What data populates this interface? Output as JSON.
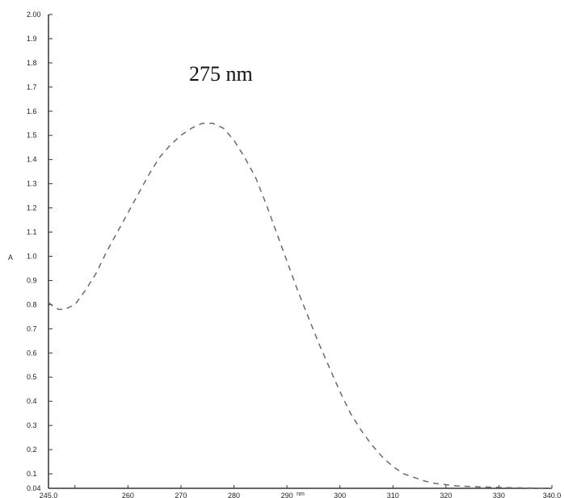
{
  "chart_data": {
    "type": "line",
    "title": "",
    "xlabel": "nm",
    "ylabel": "A",
    "xlim": [
      245.0,
      340.0
    ],
    "ylim": [
      0.04,
      2.0
    ],
    "x_tick_labels": [
      "245.0",
      "260",
      "270",
      "280",
      "290",
      "300",
      "310",
      "320",
      "330",
      "340.0"
    ],
    "y_tick_labels": [
      "0.04",
      "0.1",
      "0.2",
      "0.3",
      "0.4",
      "0.5",
      "0.6",
      "0.7",
      "0.8",
      "0.9",
      "1.0",
      "1.1",
      "1.2",
      "1.3",
      "1.4",
      "1.5",
      "1.6",
      "1.7",
      "1.8",
      "1.9",
      "2.00"
    ],
    "annotation": "275 nm",
    "grid": false,
    "line_style": "dashed",
    "series": [
      {
        "x": [
          245,
          246,
          247,
          248,
          250,
          252,
          254,
          256,
          258,
          260,
          262,
          264,
          266,
          268,
          270,
          272,
          274,
          275,
          276,
          277,
          278,
          280,
          282,
          284,
          286,
          288,
          290,
          292,
          294,
          296,
          298,
          300,
          302,
          304,
          306,
          308,
          310,
          312,
          314,
          316,
          318,
          320,
          322,
          325,
          328,
          331,
          334,
          337,
          340
        ],
        "y": [
          0.81,
          0.79,
          0.78,
          0.78,
          0.8,
          0.86,
          0.93,
          1.02,
          1.1,
          1.18,
          1.26,
          1.34,
          1.41,
          1.46,
          1.5,
          1.53,
          1.55,
          1.55,
          1.55,
          1.54,
          1.53,
          1.48,
          1.41,
          1.33,
          1.22,
          1.1,
          0.98,
          0.86,
          0.75,
          0.64,
          0.54,
          0.44,
          0.35,
          0.28,
          0.22,
          0.17,
          0.13,
          0.1,
          0.085,
          0.07,
          0.06,
          0.055,
          0.05,
          0.047,
          0.045,
          0.043,
          0.042,
          0.041,
          0.04
        ],
        "color": "#6a6a6a"
      }
    ]
  }
}
